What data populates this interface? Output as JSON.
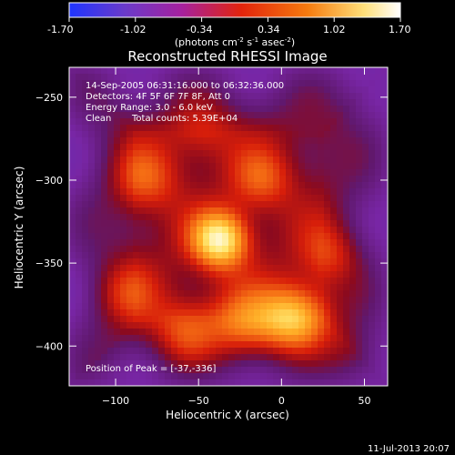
{
  "colorbar": {
    "ticks": [
      "-1.70",
      "-1.02",
      "-0.34",
      "0.34",
      "1.02",
      "1.70"
    ],
    "label_html": "(photons cm<tspan baseline-shift=\"super\" font-size=\"7\">-2</tspan> s<tspan baseline-shift=\"super\" font-size=\"7\">-1</tspan> asec<tspan baseline-shift=\"super\" font-size=\"7\">-2</tspan>)",
    "range": [
      -1.7,
      1.7
    ],
    "colors": [
      "#1f35ff",
      "#6b3ac9",
      "#a6219e",
      "#e3240c",
      "#f67b0f",
      "#ffe07a",
      "#ffffff"
    ]
  },
  "info": {
    "line1": "14-Sep-2005 06:31:16.000 to 06:32:36.000",
    "line2": "Detectors: 4F 5F 6F 7F 8F, Att 0",
    "line3": "Energy Range: 3.0 - 6.0 keV",
    "line4_left": "Clean",
    "line4_right": "Total counts: 5.39E+04"
  },
  "peak_label": "Position of Peak = [-37,-336]",
  "footer": {
    "timestamp": "11-Jul-2013 20:07"
  },
  "chart_data": {
    "type": "heatmap",
    "title": "Reconstructed RHESSI Image",
    "xlabel": "Heliocentric X (arcsec)",
    "ylabel": "Heliocentric Y (arcsec)",
    "xlim": [
      -128,
      64
    ],
    "ylim": [
      -424,
      -232
    ],
    "xticks": [
      -100,
      -50,
      0,
      50
    ],
    "yticks": [
      -250,
      -300,
      -350,
      -400
    ],
    "xtick_labels": [
      "−100",
      "−50",
      "0",
      "50"
    ],
    "ytick_labels": [
      "−250",
      "−300",
      "−350",
      "−400"
    ],
    "value_range": [
      -1.7,
      1.7
    ],
    "peak": [
      -37,
      -336
    ],
    "sources": [
      {
        "x": -37,
        "y": -336,
        "amplitude": 1.5,
        "sigma": 12
      },
      {
        "x": 8,
        "y": -383,
        "amplitude": 1.15,
        "sigma": 14
      },
      {
        "x": -22,
        "y": -388,
        "amplitude": 0.75,
        "sigma": 15
      },
      {
        "x": -58,
        "y": -392,
        "amplitude": 0.6,
        "sigma": 14
      },
      {
        "x": -82,
        "y": -300,
        "amplitude": 0.55,
        "sigma": 14
      },
      {
        "x": -12,
        "y": -300,
        "amplitude": 0.55,
        "sigma": 13
      },
      {
        "x": 30,
        "y": -345,
        "amplitude": 0.48,
        "sigma": 13
      },
      {
        "x": -96,
        "y": -368,
        "amplitude": 0.45,
        "sigma": 14
      },
      {
        "x": -48,
        "y": -270,
        "amplitude": 0.38,
        "sigma": 14
      },
      {
        "x": 42,
        "y": -405,
        "amplitude": 0.3,
        "sigma": 12
      }
    ],
    "background": 0.05
  }
}
